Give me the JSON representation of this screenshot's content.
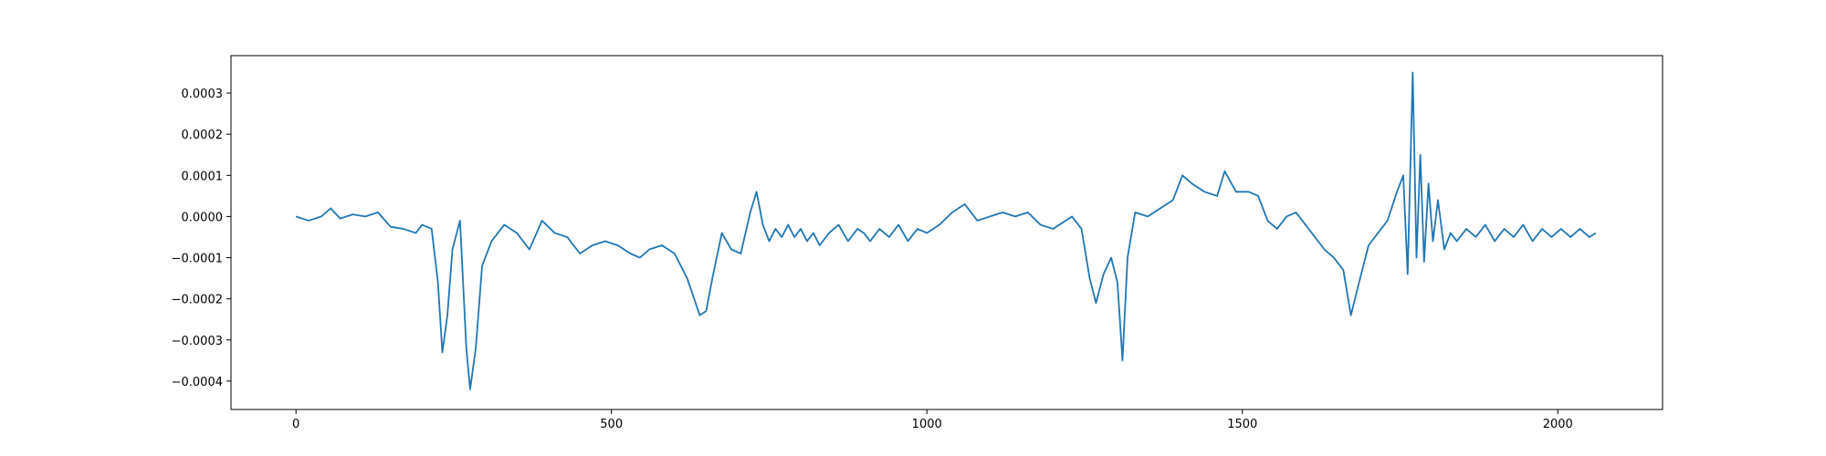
{
  "chart_data": {
    "type": "line",
    "color": "#1f77b4",
    "xlim": [
      -103,
      2166
    ],
    "ylim": [
      -0.000469,
      0.000391
    ],
    "xticks": [
      0,
      500,
      1000,
      1500,
      2000
    ],
    "yticks": [
      {
        "value": -0.0004,
        "label": "−0.0004"
      },
      {
        "value": -0.0003,
        "label": "−0.0003"
      },
      {
        "value": -0.0002,
        "label": "−0.0002"
      },
      {
        "value": -0.0001,
        "label": "−0.0001"
      },
      {
        "value": 0,
        "label": "0.0000"
      },
      {
        "value": 0.0001,
        "label": "0.0001"
      },
      {
        "value": 0.0002,
        "label": "0.0002"
      },
      {
        "value": 0.0003,
        "label": "0.0003"
      }
    ],
    "x": [
      0,
      20,
      40,
      55,
      70,
      90,
      110,
      130,
      150,
      170,
      190,
      200,
      215,
      225,
      232,
      240,
      248,
      260,
      270,
      276,
      285,
      295,
      310,
      330,
      350,
      370,
      390,
      410,
      430,
      450,
      470,
      490,
      510,
      530,
      545,
      560,
      580,
      600,
      620,
      640,
      650,
      660,
      675,
      690,
      705,
      720,
      730,
      740,
      750,
      760,
      770,
      780,
      790,
      800,
      810,
      820,
      830,
      845,
      860,
      875,
      890,
      900,
      910,
      925,
      940,
      955,
      970,
      985,
      1000,
      1020,
      1040,
      1060,
      1080,
      1100,
      1120,
      1140,
      1160,
      1180,
      1200,
      1230,
      1245,
      1258,
      1268,
      1280,
      1292,
      1302,
      1310,
      1318,
      1330,
      1350,
      1370,
      1390,
      1405,
      1420,
      1440,
      1460,
      1472,
      1490,
      1510,
      1525,
      1540,
      1555,
      1570,
      1585,
      1600,
      1615,
      1630,
      1645,
      1660,
      1672,
      1685,
      1700,
      1715,
      1730,
      1745,
      1755,
      1762,
      1770,
      1776,
      1782,
      1788,
      1795,
      1802,
      1810,
      1820,
      1830,
      1840,
      1855,
      1870,
      1885,
      1900,
      1915,
      1930,
      1945,
      1960,
      1975,
      1990,
      2005,
      2020,
      2035,
      2050,
      2060
    ],
    "values": [
      0,
      -1e-05,
      0,
      2e-05,
      -5e-06,
      5e-06,
      0,
      1e-05,
      -2.5e-05,
      -3e-05,
      -4e-05,
      -2e-05,
      -3e-05,
      -0.00016,
      -0.00033,
      -0.00024,
      -8e-05,
      -1e-05,
      -0.00032,
      -0.00042,
      -0.00032,
      -0.00012,
      -6e-05,
      -2e-05,
      -4e-05,
      -8e-05,
      -1e-05,
      -4e-05,
      -5e-05,
      -9e-05,
      -7e-05,
      -6e-05,
      -7e-05,
      -9e-05,
      -0.0001,
      -8e-05,
      -7e-05,
      -9e-05,
      -0.00015,
      -0.00024,
      -0.00023,
      -0.00015,
      -4e-05,
      -8e-05,
      -9e-05,
      1e-05,
      6e-05,
      -2e-05,
      -6e-05,
      -3e-05,
      -5e-05,
      -2e-05,
      -5e-05,
      -3e-05,
      -6e-05,
      -4e-05,
      -7e-05,
      -4e-05,
      -2e-05,
      -6e-05,
      -3e-05,
      -4e-05,
      -6e-05,
      -3e-05,
      -5e-05,
      -2e-05,
      -6e-05,
      -3e-05,
      -4e-05,
      -2e-05,
      1e-05,
      3e-05,
      -1e-05,
      0,
      1e-05,
      0,
      1e-05,
      -2e-05,
      -3e-05,
      0,
      -3e-05,
      -0.00015,
      -0.00021,
      -0.00014,
      -0.0001,
      -0.00016,
      -0.00035,
      -0.0001,
      1e-05,
      0,
      2e-05,
      4e-05,
      0.0001,
      8e-05,
      6e-05,
      5e-05,
      0.00011,
      6e-05,
      6e-05,
      5e-05,
      -1e-05,
      -3e-05,
      0,
      1e-05,
      -2e-05,
      -5e-05,
      -8e-05,
      -0.0001,
      -0.00013,
      -0.00024,
      -0.00016,
      -7e-05,
      -4e-05,
      -1e-05,
      6e-05,
      0.0001,
      -0.00014,
      0.00035,
      -0.0001,
      0.00015,
      -0.00011,
      8e-05,
      -6e-05,
      4e-05,
      -8e-05,
      -4e-05,
      -6e-05,
      -3e-05,
      -5e-05,
      -2e-05,
      -6e-05,
      -3e-05,
      -5e-05,
      -2e-05,
      -6e-05,
      -3e-05,
      -5e-05,
      -3e-05,
      -5e-05,
      -3e-05,
      -5e-05,
      -4e-05
    ]
  }
}
